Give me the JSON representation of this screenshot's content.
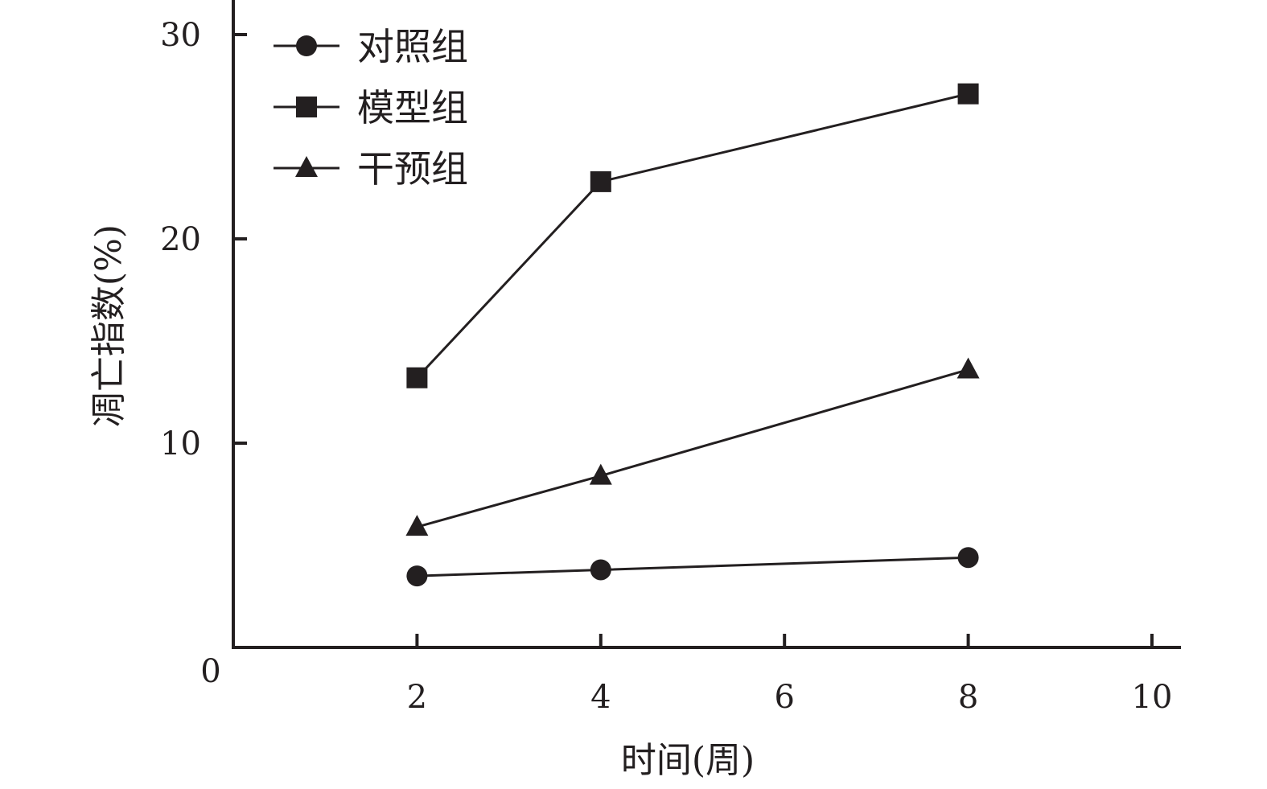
{
  "chart_data": {
    "type": "line",
    "title": "",
    "xlabel": "时间(周)",
    "ylabel": "凋亡指数(%)",
    "xlim": [
      0,
      10
    ],
    "ylim": [
      0,
      30
    ],
    "x_ticks": [
      2,
      4,
      6,
      8,
      10
    ],
    "y_ticks": [
      10,
      20,
      30
    ],
    "x_tick_labels": [
      "2",
      "4",
      "6",
      "8",
      "10"
    ],
    "y_tick_labels": [
      "10",
      "20",
      "30"
    ],
    "origin_label": "0",
    "grid": false,
    "legend_position": "top-left",
    "x": [
      2,
      4,
      8
    ],
    "series": [
      {
        "name": "对照组",
        "marker": "circle",
        "values": [
          3.5,
          3.8,
          4.4
        ]
      },
      {
        "name": "模型组",
        "marker": "square",
        "values": [
          13.2,
          22.8,
          27.1
        ]
      },
      {
        "name": "干预组",
        "marker": "triangle",
        "values": [
          5.9,
          8.4,
          13.6
        ]
      }
    ],
    "colors": {
      "ink": "#231f20"
    }
  }
}
